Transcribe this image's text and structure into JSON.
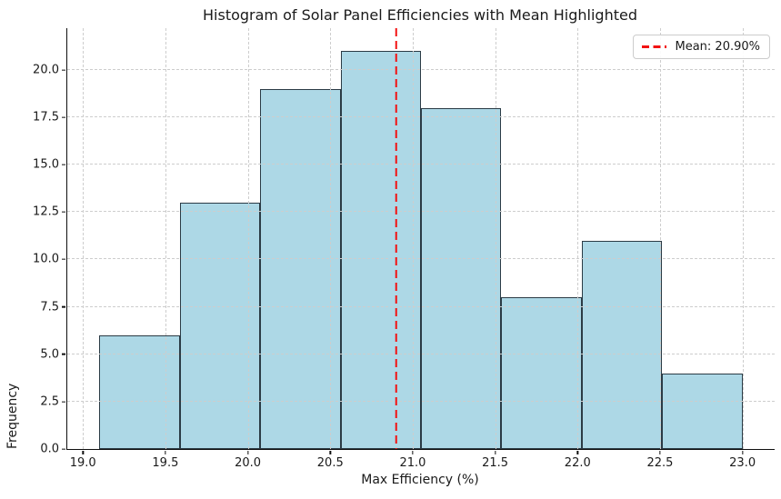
{
  "title": "Histogram of Solar Panel Efficiencies with Mean Highlighted",
  "chart_data": {
    "type": "bar",
    "subtype": "histogram",
    "title": "Histogram of Solar Panel Efficiencies with Mean Highlighted",
    "xlabel": "Max Efficiency (%)",
    "ylabel": "Frequency",
    "bin_edges": [
      19.1,
      19.5875,
      20.075,
      20.5625,
      21.05,
      21.5375,
      22.025,
      22.5125,
      23.0
    ],
    "counts": [
      6,
      13,
      19,
      21,
      18,
      8,
      11,
      4
    ],
    "total_samples": 100,
    "mean_value": 20.9,
    "mean_label": "Mean: 20.90%",
    "xlim": [
      18.905,
      23.195
    ],
    "ylim": [
      0,
      22.2
    ],
    "xticks": [
      19.0,
      19.5,
      20.0,
      20.5,
      21.0,
      21.5,
      22.0,
      22.5,
      23.0
    ],
    "xtick_labels": [
      "19.0",
      "19.5",
      "20.0",
      "20.5",
      "21.0",
      "21.5",
      "22.0",
      "22.5",
      "23.0"
    ],
    "yticks": [
      0.0,
      2.5,
      5.0,
      7.5,
      10.0,
      12.5,
      15.0,
      17.5,
      20.0
    ],
    "ytick_labels": [
      "0.0",
      "2.5",
      "5.0",
      "7.5",
      "10.0",
      "12.5",
      "15.0",
      "17.5",
      "20.0"
    ],
    "grid": true,
    "grid_style": "dashed",
    "legend_position": "upper right",
    "colors": {
      "bar_fill": "#ADD8E6",
      "bar_edge": "#2b3b45",
      "mean_line": "#f21212",
      "grid": "#cdcdcd",
      "text": "#1a1a1a",
      "spine": "#0f0f0f",
      "legend_border": "#cccccc",
      "background": "#ffffff"
    }
  }
}
